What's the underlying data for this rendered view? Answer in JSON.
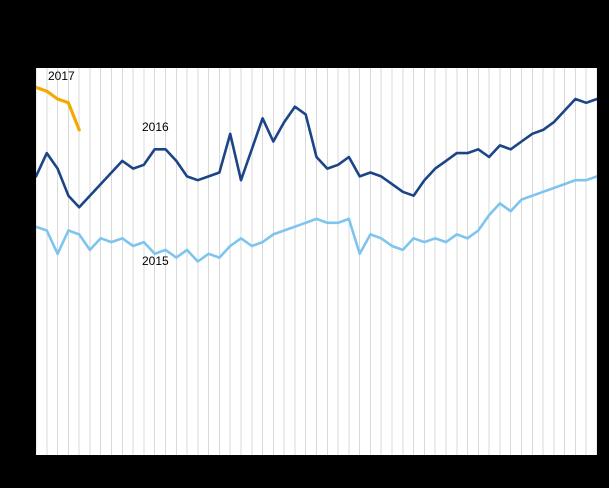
{
  "figure": {
    "background": "#000000",
    "plot_background": "#ffffff",
    "gridline_color": "#d9d9d9"
  },
  "chart_data": {
    "type": "line",
    "title": "",
    "xlabel": "",
    "ylabel": "",
    "x_unit": "week-of-year",
    "x_range": [
      1,
      53
    ],
    "ylim": [
      0,
      100
    ],
    "y_scale": "relative index (no axis tick labels visible in image)",
    "grid": "vertical only",
    "gridlines": {
      "vertical": 53,
      "horizontal": 0
    },
    "legend_position": "inline-labels",
    "series": [
      {
        "name": "2015",
        "color": "#7dc5ee",
        "stroke_width": 2.6,
        "values": [
          59,
          58,
          52,
          58,
          57,
          53,
          56,
          55,
          56,
          54,
          55,
          52,
          53,
          51,
          53,
          50,
          52,
          51,
          54,
          56,
          54,
          55,
          57,
          58,
          59,
          60,
          61,
          60,
          60,
          61,
          52,
          57,
          56,
          54,
          53,
          56,
          55,
          56,
          55,
          57,
          56,
          58,
          62,
          65,
          63,
          66,
          67,
          68,
          69,
          70,
          71,
          71,
          72
        ]
      },
      {
        "name": "2016",
        "color": "#1b4586",
        "stroke_width": 2.6,
        "values": [
          72,
          78,
          74,
          67,
          64,
          67,
          70,
          73,
          76,
          74,
          75,
          79,
          79,
          76,
          72,
          71,
          72,
          73,
          83,
          71,
          79,
          87,
          81,
          86,
          90,
          88,
          77,
          74,
          75,
          77,
          72,
          73,
          72,
          70,
          68,
          67,
          71,
          74,
          76,
          78,
          78,
          79,
          77,
          80,
          79,
          81,
          83,
          84,
          86,
          89,
          92,
          91,
          92
        ]
      },
      {
        "name": "2017",
        "color": "#f5a800",
        "stroke_width": 3.2,
        "values": [
          95,
          94,
          92,
          91,
          84
        ]
      }
    ]
  }
}
